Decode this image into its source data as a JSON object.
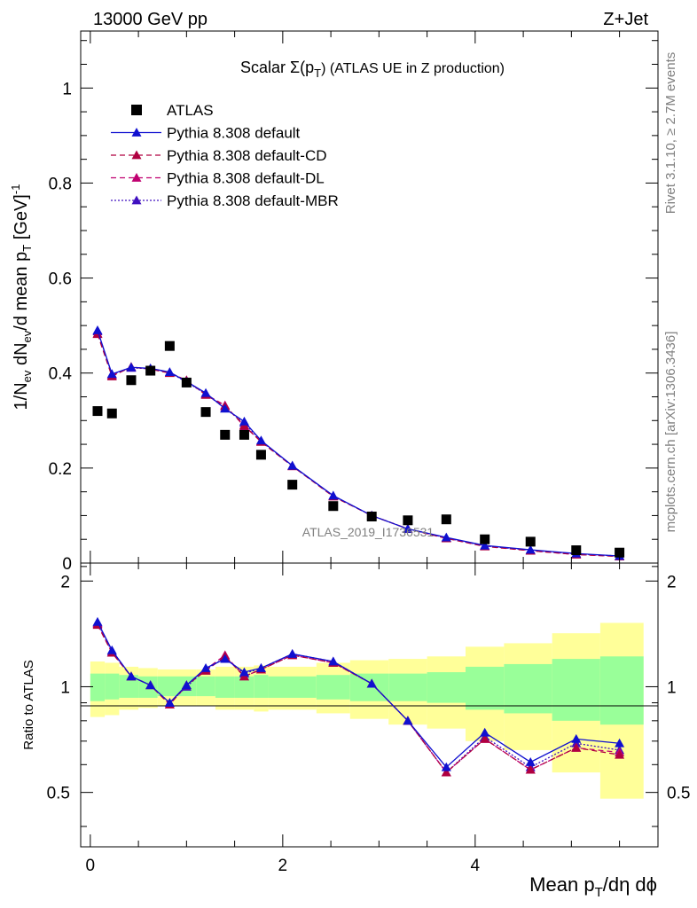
{
  "header": {
    "left_label": "13000 GeV pp",
    "right_label": "Z+Jet"
  },
  "side_labels": {
    "rivet": "Rivet 3.1.10, ≥ 2.7M events",
    "mcplots": "mcplots.cern.ch [arXiv:1306.3436]"
  },
  "watermark": "ATLAS_2019_I1736531",
  "colors": {
    "data": "#000000",
    "default": "#1010d0",
    "cd": "#b00040",
    "dl": "#c00070",
    "mbr": "#4010c0",
    "band_green": "#99ff99",
    "band_yellow": "#ffff99"
  },
  "chart_data": [
    {
      "type": "scatter",
      "title": "Scalar Σ(pT) (ATLAS UE in Z production)",
      "title_parts": {
        "pre": "Scalar ",
        "sigma": "Σ(p",
        "sub": "T",
        "post": ") (ATLAS UE in Z production)"
      },
      "ylabel": "1/Nev dNev/d mean pT [GeV]-1",
      "ylabel_parts": {
        "a": "1/N",
        "a_sub": "ev",
        "b": " dN",
        "b_sub": "ev",
        "c": "/d mean p",
        "c_sub": "T",
        "d": " [GeV]",
        "d_sup": "-1"
      },
      "xlim": [
        -0.1,
        5.9
      ],
      "ylim": [
        0,
        1.12
      ],
      "y_ticks": [
        0,
        0.2,
        0.4,
        0.6,
        0.8,
        1
      ],
      "y_tick_labels": [
        "0",
        "0.2",
        "0.4",
        "0.6",
        "0.8",
        "1"
      ],
      "legend": [
        {
          "label": "ATLAS",
          "style": "square"
        },
        {
          "label": "Pythia 8.308 default",
          "style": "solid"
        },
        {
          "label": "Pythia 8.308 default-CD",
          "style": "dashed"
        },
        {
          "label": "Pythia 8.308 default-DL",
          "style": "dashed"
        },
        {
          "label": "Pythia 8.308 default-MBR",
          "style": "dotted"
        }
      ],
      "x": [
        0.075,
        0.225,
        0.425,
        0.625,
        0.825,
        1.0,
        1.2,
        1.4,
        1.6,
        1.775,
        2.1,
        2.525,
        2.925,
        3.3,
        3.7,
        4.1,
        4.575,
        5.05,
        5.5
      ],
      "series": [
        {
          "name": "ATLAS",
          "values": [
            0.32,
            0.315,
            0.385,
            0.405,
            0.457,
            0.38,
            0.318,
            0.27,
            0.27,
            0.228,
            0.165,
            0.12,
            0.098,
            0.09,
            0.092,
            0.05,
            0.045,
            0.027,
            0.022
          ]
        },
        {
          "name": "Pythia 8.308 default",
          "values": [
            0.49,
            0.398,
            0.412,
            0.41,
            0.402,
            0.382,
            0.358,
            0.325,
            0.298,
            0.258,
            0.205,
            0.142,
            0.1,
            0.072,
            0.054,
            0.037,
            0.028,
            0.02,
            0.015
          ]
        },
        {
          "name": "Pythia 8.308 default-CD",
          "values": [
            0.482,
            0.393,
            0.413,
            0.408,
            0.4,
            0.385,
            0.354,
            0.33,
            0.29,
            0.255,
            0.204,
            0.14,
            0.1,
            0.072,
            0.052,
            0.035,
            0.026,
            0.018,
            0.014
          ]
        },
        {
          "name": "Pythia 8.308 default-DL",
          "values": [
            0.483,
            0.395,
            0.412,
            0.409,
            0.401,
            0.384,
            0.355,
            0.332,
            0.288,
            0.256,
            0.204,
            0.141,
            0.1,
            0.072,
            0.052,
            0.036,
            0.026,
            0.018,
            0.014
          ]
        },
        {
          "name": "Pythia 8.308 default-MBR",
          "values": [
            0.488,
            0.397,
            0.411,
            0.409,
            0.401,
            0.381,
            0.356,
            0.326,
            0.295,
            0.257,
            0.205,
            0.141,
            0.1,
            0.072,
            0.053,
            0.036,
            0.027,
            0.019,
            0.015
          ]
        }
      ]
    },
    {
      "type": "line",
      "xlabel": "Mean pT/dη dϕ",
      "xlabel_parts": {
        "a": "Mean p",
        "a_sub": "T",
        "b": "/dη dϕ"
      },
      "ylabel": "Ratio to ATLAS",
      "xlim": [
        -0.1,
        5.9
      ],
      "ylim": [
        0.35,
        2.25
      ],
      "x_ticks": [
        0,
        2,
        4
      ],
      "x_tick_labels": [
        "0",
        "2",
        "4"
      ],
      "y_ticks": [
        0.5,
        1,
        2
      ],
      "y_tick_labels": [
        "0.5",
        "1",
        "2"
      ],
      "bins": [
        [
          0,
          0.15
        ],
        [
          0.15,
          0.3
        ],
        [
          0.3,
          0.5
        ],
        [
          0.5,
          0.7
        ],
        [
          0.7,
          0.9
        ],
        [
          0.9,
          1.1
        ],
        [
          1.1,
          1.3
        ],
        [
          1.3,
          1.5
        ],
        [
          1.5,
          1.7
        ],
        [
          1.7,
          1.85
        ],
        [
          1.85,
          2.35
        ],
        [
          2.35,
          2.7
        ],
        [
          2.7,
          3.1
        ],
        [
          3.1,
          3.5
        ],
        [
          3.5,
          3.9
        ],
        [
          3.9,
          4.3
        ],
        [
          4.3,
          4.8
        ],
        [
          4.8,
          5.3
        ],
        [
          5.3,
          5.75
        ]
      ],
      "band_green": [
        [
          0.91,
          1.09
        ],
        [
          0.92,
          1.09
        ],
        [
          0.93,
          1.08
        ],
        [
          0.93,
          1.07
        ],
        [
          0.94,
          1.07
        ],
        [
          0.94,
          1.07
        ],
        [
          0.94,
          1.07
        ],
        [
          0.93,
          1.07
        ],
        [
          0.93,
          1.07
        ],
        [
          0.93,
          1.08
        ],
        [
          0.93,
          1.07
        ],
        [
          0.92,
          1.08
        ],
        [
          0.91,
          1.09
        ],
        [
          0.91,
          1.09
        ],
        [
          0.9,
          1.1
        ],
        [
          0.86,
          1.14
        ],
        [
          0.84,
          1.16
        ],
        [
          0.8,
          1.2
        ],
        [
          0.78,
          1.22
        ]
      ],
      "band_yellow": [
        [
          0.82,
          1.18
        ],
        [
          0.83,
          1.17
        ],
        [
          0.86,
          1.14
        ],
        [
          0.87,
          1.13
        ],
        [
          0.88,
          1.12
        ],
        [
          0.88,
          1.12
        ],
        [
          0.88,
          1.12
        ],
        [
          0.86,
          1.14
        ],
        [
          0.86,
          1.14
        ],
        [
          0.85,
          1.15
        ],
        [
          0.86,
          1.14
        ],
        [
          0.84,
          1.17
        ],
        [
          0.81,
          1.19
        ],
        [
          0.78,
          1.2
        ],
        [
          0.76,
          1.22
        ],
        [
          0.7,
          1.3
        ],
        [
          0.66,
          1.33
        ],
        [
          0.57,
          1.42
        ],
        [
          0.48,
          1.52
        ]
      ],
      "x": [
        0.075,
        0.225,
        0.425,
        0.625,
        0.825,
        1.0,
        1.2,
        1.4,
        1.6,
        1.775,
        2.1,
        2.525,
        2.925,
        3.3,
        3.7,
        4.1,
        4.575,
        5.05,
        5.5
      ],
      "series": [
        {
          "name": "Pythia 8.308 default",
          "values": [
            1.53,
            1.27,
            1.07,
            1.01,
            0.9,
            1.01,
            1.13,
            1.2,
            1.1,
            1.13,
            1.24,
            1.18,
            1.02,
            0.8,
            0.59,
            0.74,
            0.61,
            0.71,
            0.69
          ]
        },
        {
          "name": "Pythia 8.308 default-CD",
          "values": [
            1.5,
            1.25,
            1.07,
            1.01,
            0.89,
            1.01,
            1.11,
            1.22,
            1.07,
            1.12,
            1.23,
            1.17,
            1.02,
            0.8,
            0.57,
            0.71,
            0.58,
            0.67,
            0.64
          ]
        },
        {
          "name": "Pythia 8.308 default-DL",
          "values": [
            1.51,
            1.25,
            1.07,
            1.01,
            0.89,
            1.01,
            1.12,
            1.23,
            1.07,
            1.12,
            1.23,
            1.17,
            1.02,
            0.8,
            0.57,
            0.71,
            0.58,
            0.67,
            0.65
          ]
        },
        {
          "name": "Pythia 8.308 default-MBR",
          "values": [
            1.52,
            1.26,
            1.07,
            1.01,
            0.9,
            1.0,
            1.12,
            1.21,
            1.09,
            1.13,
            1.24,
            1.18,
            1.02,
            0.8,
            0.57,
            0.72,
            0.59,
            0.69,
            0.66
          ]
        }
      ]
    }
  ]
}
